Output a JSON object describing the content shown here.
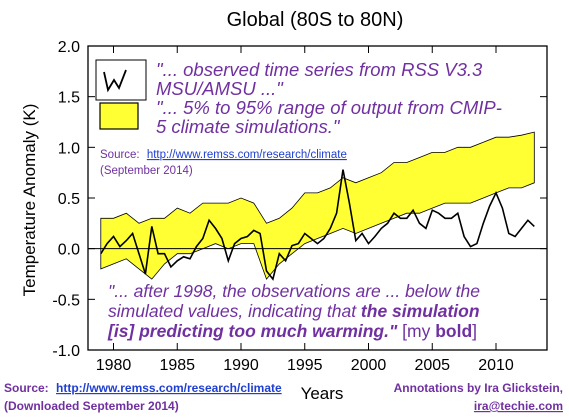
{
  "chart_data": {
    "type": "line",
    "title": "Global (80S to 80N)",
    "xlabel": "Years",
    "ylabel": "Temperature Anomaly (K)",
    "xlim": [
      1978,
      2014
    ],
    "ylim": [
      -1.0,
      2.0
    ],
    "x_ticks": [
      "1980",
      "1985",
      "1990",
      "1995",
      "2000",
      "2005",
      "2010"
    ],
    "y_ticks": [
      "-1.0",
      "-0.5",
      "0.0",
      "0.5",
      "1.0",
      "1.5",
      "2.0"
    ],
    "legend_position": "top-left",
    "series": [
      {
        "name": "observed time series from RSS V3.3 MSU/AMSU",
        "style": "black line",
        "x": [
          1979.0,
          1979.5,
          1980.0,
          1980.5,
          1981.0,
          1981.5,
          1982.0,
          1982.5,
          1983.0,
          1983.5,
          1984.0,
          1984.5,
          1985.0,
          1985.5,
          1986.0,
          1986.5,
          1987.0,
          1987.5,
          1988.0,
          1988.5,
          1989.0,
          1989.5,
          1990.0,
          1990.5,
          1991.0,
          1991.5,
          1992.0,
          1992.5,
          1993.0,
          1993.5,
          1994.0,
          1994.5,
          1995.0,
          1995.5,
          1996.0,
          1996.5,
          1997.0,
          1997.5,
          1998.0,
          1998.5,
          1999.0,
          1999.5,
          2000.0,
          2000.5,
          2001.0,
          2001.5,
          2002.0,
          2002.5,
          2003.0,
          2003.5,
          2004.0,
          2004.5,
          2005.0,
          2005.5,
          2006.0,
          2006.5,
          2007.0,
          2007.5,
          2008.0,
          2008.5,
          2009.0,
          2009.5,
          2010.0,
          2010.5,
          2011.0,
          2011.5,
          2012.0,
          2012.5,
          2013.0
        ],
        "y": [
          -0.05,
          0.05,
          0.12,
          0.02,
          0.08,
          0.15,
          -0.05,
          -0.25,
          0.22,
          -0.05,
          -0.05,
          -0.18,
          -0.12,
          -0.08,
          -0.1,
          0.02,
          0.1,
          0.28,
          0.2,
          0.1,
          -0.12,
          0.05,
          0.1,
          0.12,
          0.18,
          0.15,
          -0.22,
          -0.3,
          -0.05,
          -0.12,
          0.03,
          0.05,
          0.15,
          0.1,
          0.05,
          0.1,
          0.2,
          0.35,
          0.78,
          0.45,
          0.08,
          0.15,
          0.05,
          0.12,
          0.2,
          0.25,
          0.35,
          0.3,
          0.3,
          0.38,
          0.25,
          0.2,
          0.38,
          0.35,
          0.3,
          0.3,
          0.35,
          0.12,
          0.02,
          0.05,
          0.25,
          0.42,
          0.55,
          0.4,
          0.15,
          0.12,
          0.2,
          0.28,
          0.22
        ]
      },
      {
        "name": "5% to 95% range of output from CMIP-5 climate simulations",
        "style": "yellow band",
        "x": [
          1979.0,
          1980.0,
          1981.0,
          1982.0,
          1983.0,
          1984.0,
          1985.0,
          1986.0,
          1987.0,
          1988.0,
          1989.0,
          1990.0,
          1991.0,
          1992.0,
          1993.0,
          1994.0,
          1995.0,
          1996.0,
          1997.0,
          1998.0,
          1999.0,
          2000.0,
          2001.0,
          2002.0,
          2003.0,
          2004.0,
          2005.0,
          2006.0,
          2007.0,
          2008.0,
          2009.0,
          2010.0,
          2011.0,
          2012.0,
          2013.0
        ],
        "lower": [
          -0.2,
          -0.15,
          -0.1,
          -0.2,
          -0.3,
          -0.15,
          -0.05,
          -0.05,
          0.0,
          0.05,
          0.0,
          0.05,
          0.05,
          -0.3,
          -0.15,
          -0.05,
          0.05,
          0.1,
          0.15,
          0.2,
          0.15,
          0.2,
          0.25,
          0.3,
          0.35,
          0.35,
          0.4,
          0.45,
          0.45,
          0.45,
          0.5,
          0.55,
          0.6,
          0.6,
          0.65
        ],
        "upper": [
          0.3,
          0.3,
          0.35,
          0.25,
          0.3,
          0.3,
          0.4,
          0.35,
          0.45,
          0.45,
          0.45,
          0.5,
          0.45,
          0.25,
          0.3,
          0.4,
          0.55,
          0.55,
          0.6,
          0.7,
          0.65,
          0.7,
          0.75,
          0.85,
          0.85,
          0.9,
          0.95,
          0.95,
          1.0,
          1.0,
          1.05,
          1.1,
          1.1,
          1.12,
          1.15
        ]
      }
    ],
    "annotations": {
      "legend_line1": "\"... observed time series from RSS V3.3",
      "legend_line2": "MSU/AMSU ...\"",
      "legend_line3": "\"... 5% to 95% range of output from CMIP-",
      "legend_line4": "5 climate simulations.\"",
      "source_label": "Source:",
      "source_url": "http://www.remss.com/research/climate",
      "source_date": "(September 2014)",
      "quote_line1": "\"... after 1998, the observations are ... below the",
      "quote_line2_a": "simulated values, indicating that ",
      "quote_line2_b": "the simulation",
      "quote_line3_a": "[is] predicting too much warming.\"",
      "quote_line3_b": " [my ",
      "quote_line3_c": "bold",
      "quote_line3_d": "]"
    }
  },
  "footer": {
    "source_label": "Source:",
    "source_url": "http://www.remss.com/research/climate",
    "downloaded": "(Downloaded September 2014)",
    "annotations_by": "Annotations by Ira Glickstein,",
    "email": "ira@techie.com"
  },
  "colors": {
    "band": "#ffff33",
    "band_edge": "#000000",
    "observed": "#000000",
    "annotation_text": "#7030a0",
    "link": "#1f3fd1"
  }
}
